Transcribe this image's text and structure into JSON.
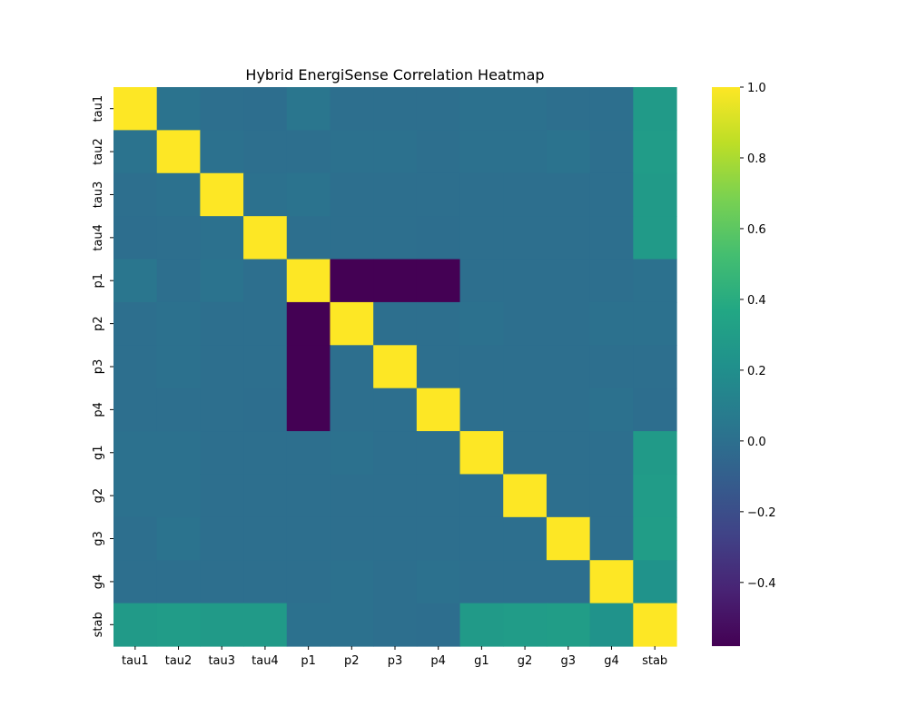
{
  "chart_data": {
    "type": "heatmap",
    "title": "Hybrid EnergiSense Correlation Heatmap",
    "xlabel": "",
    "ylabel": "",
    "colormap": "viridis",
    "vmin": -0.58,
    "vmax": 1.0,
    "grid": false,
    "colorbar": {
      "placement": "right",
      "ticks": [
        1.0,
        0.8,
        0.6,
        0.4,
        0.2,
        0.0,
        -0.2,
        -0.4
      ],
      "tick_labels": [
        "1.0",
        "0.8",
        "0.6",
        "0.4",
        "0.2",
        "0.0",
        "−0.2",
        "−0.4"
      ]
    },
    "labels": [
      "tau1",
      "tau2",
      "tau3",
      "tau4",
      "p1",
      "p2",
      "p3",
      "p4",
      "g1",
      "g2",
      "g3",
      "g4",
      "stab"
    ],
    "matrix": [
      [
        1.0,
        0.02,
        0.0,
        -0.01,
        0.04,
        0.0,
        0.0,
        0.0,
        0.01,
        0.01,
        0.0,
        0.0,
        0.28
      ],
      [
        0.02,
        1.0,
        0.01,
        0.0,
        0.0,
        0.01,
        0.01,
        0.0,
        0.01,
        0.01,
        0.02,
        0.0,
        0.29
      ],
      [
        0.0,
        0.01,
        1.0,
        0.01,
        0.02,
        0.0,
        0.0,
        0.0,
        0.0,
        0.0,
        0.0,
        0.0,
        0.28
      ],
      [
        -0.01,
        0.0,
        0.01,
        1.0,
        0.0,
        0.0,
        0.0,
        -0.01,
        0.0,
        0.0,
        0.0,
        0.0,
        0.28
      ],
      [
        0.04,
        0.0,
        0.02,
        0.0,
        1.0,
        -0.58,
        -0.58,
        -0.58,
        0.0,
        0.0,
        0.0,
        0.0,
        0.01
      ],
      [
        0.0,
        0.01,
        0.0,
        0.0,
        -0.58,
        1.0,
        0.0,
        0.0,
        0.01,
        0.0,
        0.0,
        0.01,
        0.01
      ],
      [
        0.0,
        0.01,
        0.0,
        0.0,
        -0.58,
        0.0,
        1.0,
        0.0,
        0.0,
        0.0,
        0.0,
        0.0,
        0.0
      ],
      [
        0.0,
        0.0,
        0.0,
        -0.01,
        -0.58,
        0.0,
        0.0,
        1.0,
        0.0,
        0.0,
        0.0,
        0.01,
        -0.01
      ],
      [
        0.01,
        0.01,
        0.0,
        0.0,
        0.0,
        0.01,
        0.0,
        0.0,
        1.0,
        0.0,
        0.0,
        0.0,
        0.28
      ],
      [
        0.01,
        0.01,
        0.0,
        0.0,
        0.0,
        0.0,
        0.0,
        0.0,
        0.0,
        1.0,
        0.0,
        0.0,
        0.29
      ],
      [
        0.0,
        0.02,
        0.0,
        0.0,
        0.0,
        0.0,
        0.0,
        0.0,
        0.0,
        0.0,
        1.0,
        0.0,
        0.3
      ],
      [
        0.0,
        0.0,
        0.0,
        0.0,
        0.0,
        0.01,
        0.0,
        0.01,
        0.0,
        0.0,
        0.0,
        1.0,
        0.23
      ],
      [
        0.28,
        0.29,
        0.28,
        0.28,
        0.01,
        0.01,
        0.0,
        -0.01,
        0.28,
        0.29,
        0.3,
        0.23,
        1.0
      ]
    ]
  }
}
